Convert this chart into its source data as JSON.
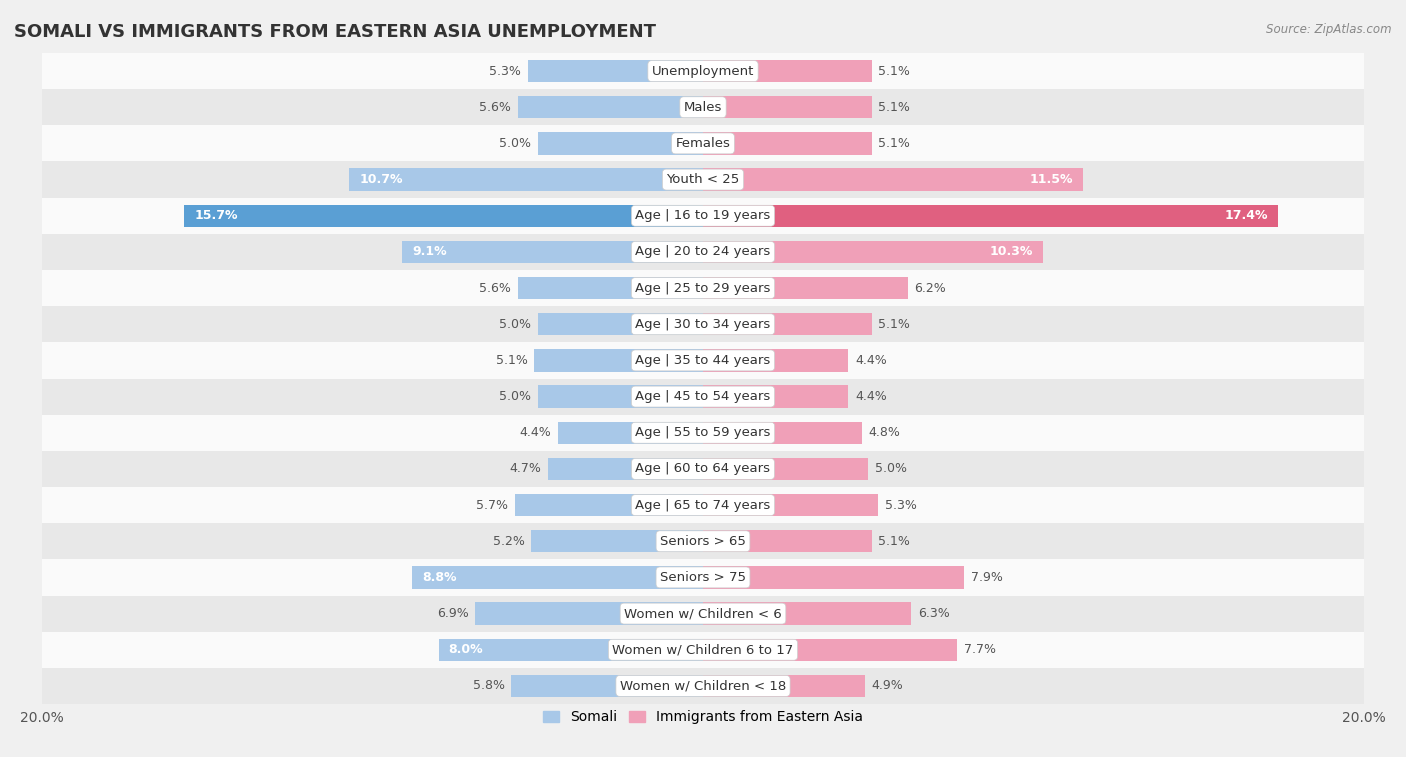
{
  "title": "SOMALI VS IMMIGRANTS FROM EASTERN ASIA UNEMPLOYMENT",
  "source": "Source: ZipAtlas.com",
  "categories": [
    "Unemployment",
    "Males",
    "Females",
    "Youth < 25",
    "Age | 16 to 19 years",
    "Age | 20 to 24 years",
    "Age | 25 to 29 years",
    "Age | 30 to 34 years",
    "Age | 35 to 44 years",
    "Age | 45 to 54 years",
    "Age | 55 to 59 years",
    "Age | 60 to 64 years",
    "Age | 65 to 74 years",
    "Seniors > 65",
    "Seniors > 75",
    "Women w/ Children < 6",
    "Women w/ Children 6 to 17",
    "Women w/ Children < 18"
  ],
  "somali": [
    5.3,
    5.6,
    5.0,
    10.7,
    15.7,
    9.1,
    5.6,
    5.0,
    5.1,
    5.0,
    4.4,
    4.7,
    5.7,
    5.2,
    8.8,
    6.9,
    8.0,
    5.8
  ],
  "eastern_asia": [
    5.1,
    5.1,
    5.1,
    11.5,
    17.4,
    10.3,
    6.2,
    5.1,
    4.4,
    4.4,
    4.8,
    5.0,
    5.3,
    5.1,
    7.9,
    6.3,
    7.7,
    4.9
  ],
  "somali_color": "#a8c8e8",
  "eastern_asia_color": "#f0a0b8",
  "highlight_somali_color": "#5a9fd4",
  "highlight_eastern_asia_color": "#e06080",
  "axis_max": 20.0,
  "background_color": "#f0f0f0",
  "row_bg_light": "#fafafa",
  "row_bg_dark": "#e8e8e8",
  "bar_height": 0.62,
  "label_fontsize": 9.5,
  "value_fontsize": 9.0,
  "title_fontsize": 13,
  "legend_labels": [
    "Somali",
    "Immigrants from Eastern Asia"
  ]
}
